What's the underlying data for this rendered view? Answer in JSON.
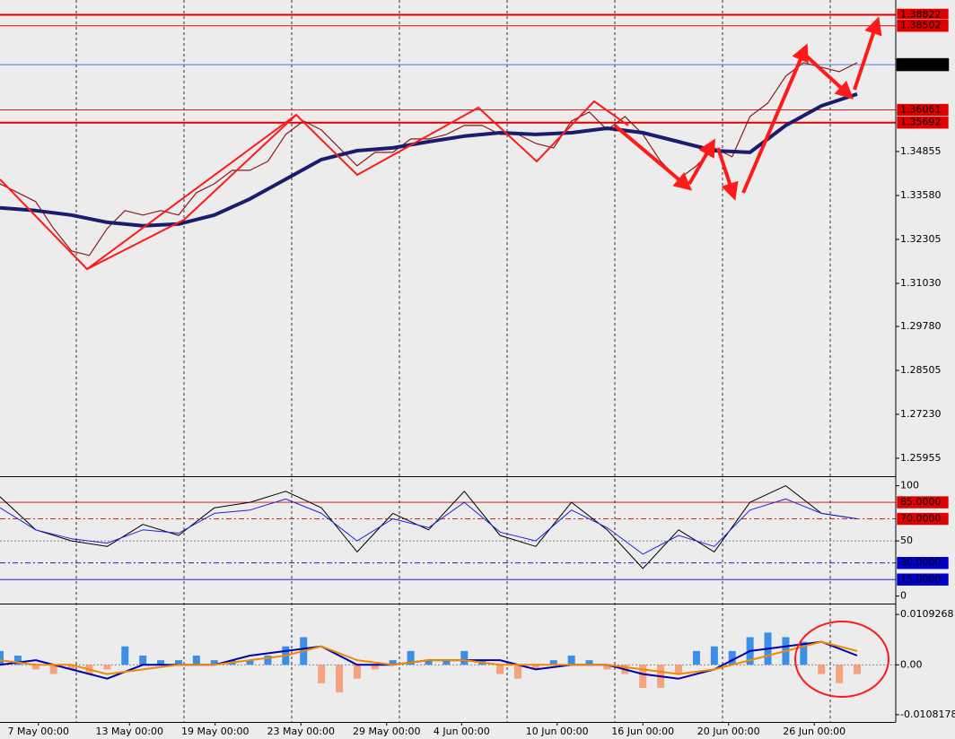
{
  "chart_data": [
    {
      "type": "line",
      "xlim": [
        0,
        48
      ],
      "ylim": [
        1.2546,
        1.3925
      ],
      "yticks": [
        {
          "value": 1.34855,
          "label": "1.34855"
        },
        {
          "value": 1.3358,
          "label": "1.33580"
        },
        {
          "value": 1.32305,
          "label": "1.32305"
        },
        {
          "value": 1.3103,
          "label": "1.31030"
        },
        {
          "value": 1.2978,
          "label": "1.29780"
        },
        {
          "value": 1.28505,
          "label": "1.28505"
        },
        {
          "value": 1.2723,
          "label": "1.27230"
        },
        {
          "value": 1.25955,
          "label": "1.25955"
        }
      ],
      "levels": [
        {
          "value": 1.38822,
          "color": "#e00000"
        },
        {
          "value": 1.38502,
          "color": "#e00000"
        },
        {
          "value": 1.37375,
          "color": "#000000"
        },
        {
          "value": 1.36061,
          "color": "#e00000"
        },
        {
          "value": 1.35692,
          "color": "#e00000"
        }
      ],
      "series": [
        {
          "color": "#8b1a1a",
          "values": [
            1.3392,
            1.3366,
            1.334,
            1.3262,
            1.3197,
            1.3184,
            1.3262,
            1.3314,
            1.3301,
            1.3314,
            1.3301,
            1.3366,
            1.3392,
            1.3431,
            1.3431,
            1.3457,
            1.3535,
            1.3574,
            1.3548,
            1.3496,
            1.3444,
            1.3483,
            1.3483,
            1.3522,
            1.3522,
            1.3535,
            1.3561,
            1.3561,
            1.3535,
            1.3535,
            1.3509,
            1.3496,
            1.3574,
            1.36,
            1.3548,
            1.3587,
            1.3535,
            1.3457,
            1.3405,
            1.3444,
            1.3496,
            1.347,
            1.3587,
            1.3626,
            1.3704,
            1.3743,
            1.373,
            1.3717,
            1.3743
          ]
        },
        {
          "color": "#1c1c6e",
          "x": [
            0,
            2,
            4,
            6,
            8,
            10,
            12,
            14,
            16,
            18,
            20,
            22,
            24,
            26,
            28,
            30,
            32,
            34,
            36,
            38,
            40,
            42,
            44,
            46,
            48
          ],
          "values": [
            1.3322,
            1.3314,
            1.3301,
            1.328,
            1.327,
            1.3275,
            1.3301,
            1.3348,
            1.3405,
            1.3462,
            1.3488,
            1.3496,
            1.3514,
            1.353,
            1.354,
            1.3535,
            1.354,
            1.3553,
            1.354,
            1.3514,
            1.3488,
            1.3483,
            1.3561,
            1.3618,
            1.3652
          ]
        }
      ]
    },
    {
      "type": "line",
      "xlim": [
        0,
        48
      ],
      "ylim": [
        -6,
        107
      ],
      "yticks": [
        100,
        50,
        0
      ],
      "levels": [
        {
          "value": 85,
          "label": "85.0000",
          "color": "#e00000"
        },
        {
          "value": 70,
          "label": "70.0000",
          "color": "#e00000",
          "dashed": true
        },
        {
          "value": 30,
          "label": "30.0000",
          "color": "#0000cc",
          "dashed": true
        },
        {
          "value": 15,
          "label": "15.0000",
          "color": "#0000cc"
        }
      ],
      "series": [
        {
          "color": "#000000",
          "x": [
            0,
            2,
            4,
            6,
            8,
            10,
            12,
            14,
            16,
            18,
            20,
            22,
            24,
            26,
            28,
            30,
            32,
            34,
            36,
            38,
            40,
            42,
            44,
            46,
            48
          ],
          "values": [
            90,
            60,
            50,
            45,
            65,
            55,
            80,
            85,
            95,
            80,
            40,
            75,
            60,
            95,
            55,
            45,
            85,
            60,
            25,
            60,
            40,
            85,
            100,
            75,
            70
          ]
        },
        {
          "color": "#2020e0",
          "x": [
            0,
            2,
            4,
            6,
            8,
            10,
            12,
            14,
            16,
            18,
            20,
            22,
            24,
            26,
            28,
            30,
            32,
            34,
            36,
            38,
            40,
            42,
            44,
            46,
            48
          ],
          "values": [
            80,
            60,
            52,
            48,
            60,
            57,
            75,
            78,
            88,
            75,
            50,
            70,
            62,
            85,
            58,
            50,
            78,
            62,
            38,
            55,
            45,
            78,
            88,
            75,
            70
          ]
        }
      ]
    },
    {
      "type": "macd",
      "xlim": [
        0,
        48
      ],
      "ylim": [
        -0.0124,
        0.0129
      ],
      "yticks": [
        0.0109268,
        {
          "value": 0,
          "label": "0.00"
        },
        -0.0108178
      ],
      "positive_color": "#3b8fe6",
      "negative_color": "#f5a27f",
      "histogram": [
        0.003,
        0.002,
        -0.001,
        -0.002,
        -0.001,
        -0.002,
        -0.001,
        0.004,
        0.002,
        0.001,
        0.001,
        0.002,
        0.001,
        0.001,
        0.001,
        0.002,
        0.004,
        0.006,
        -0.004,
        -0.006,
        -0.003,
        -0.001,
        0.001,
        0.003,
        0.001,
        0.001,
        0.003,
        0.001,
        -0.002,
        -0.003,
        -0.001,
        0.001,
        0.002,
        0.001,
        -0.001,
        -0.002,
        -0.005,
        -0.005,
        -0.002,
        0.003,
        0.004,
        0.003,
        0.006,
        0.007,
        0.006,
        0.005,
        -0.002,
        -0.004,
        -0.002
      ],
      "series": [
        {
          "color": "#0000b0",
          "x": [
            0,
            2,
            4,
            6,
            8,
            10,
            12,
            14,
            16,
            18,
            20,
            22,
            24,
            26,
            28,
            30,
            32,
            34,
            36,
            38,
            40,
            42,
            44,
            46,
            48
          ],
          "values": [
            0,
            0.001,
            -0.001,
            -0.003,
            0,
            0,
            0,
            0.002,
            0.003,
            0.004,
            0,
            0,
            0.001,
            0.001,
            0.001,
            -0.001,
            0,
            0,
            -0.002,
            -0.003,
            -0.001,
            0.003,
            0.004,
            0.005,
            0.002
          ]
        },
        {
          "color": "#f08a00",
          "x": [
            0,
            2,
            4,
            6,
            8,
            10,
            12,
            14,
            16,
            18,
            20,
            22,
            24,
            26,
            28,
            30,
            32,
            34,
            36,
            38,
            40,
            42,
            44,
            46,
            48
          ],
          "values": [
            0.001,
            0,
            0,
            -0.002,
            -0.001,
            0,
            0,
            0.001,
            0.002,
            0.004,
            0.001,
            0,
            0.001,
            0.001,
            0,
            0,
            0,
            0,
            -0.001,
            -0.002,
            -0.001,
            0.001,
            0.003,
            0.005,
            0.003
          ]
        }
      ],
      "xticks": [
        {
          "value": 2.15,
          "label": "7 May 00:00"
        },
        {
          "value": 7.25,
          "label": "13 May 00:00"
        },
        {
          "value": 12.05,
          "label": "19 May 00:00"
        },
        {
          "value": 16.85,
          "label": "23 May 00:00"
        },
        {
          "value": 21.65,
          "label": "29 May 00:00"
        },
        {
          "value": 25.85,
          "label": "4 Jun 00:00"
        },
        {
          "value": 31.2,
          "label": "10 Jun 00:00"
        },
        {
          "value": 36,
          "label": "16 Jun 00:00"
        },
        {
          "value": 40.8,
          "label": "20 Jun 00:00"
        },
        {
          "value": 45.6,
          "label": "26 Jun 00:00"
        }
      ]
    }
  ]
}
